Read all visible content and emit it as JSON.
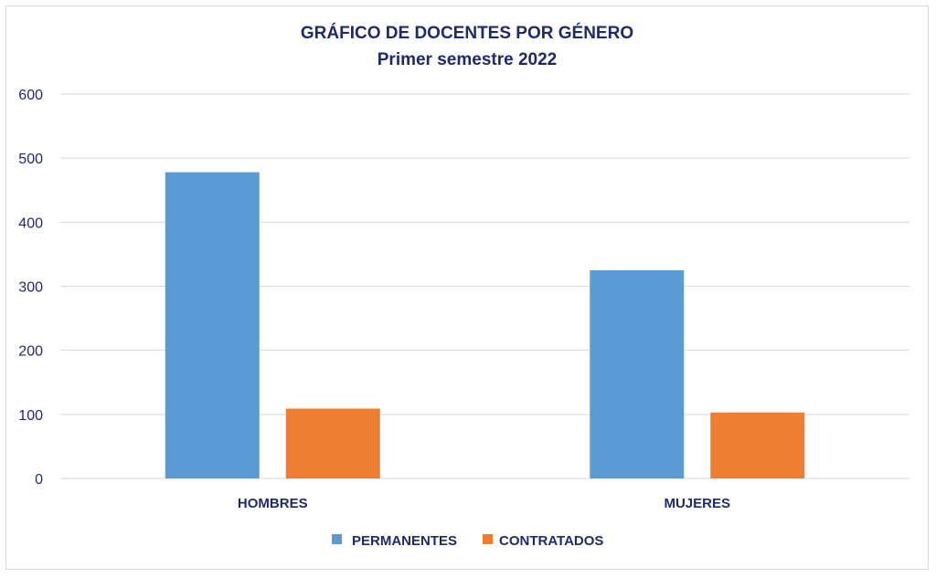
{
  "colors": {
    "title": "#1f2a6b",
    "axis_text": "#1f2a6b",
    "grid": "#d9d9d9",
    "permanentes": "#5b9bd5",
    "contratados": "#ed7d31"
  },
  "chart_data": {
    "type": "bar",
    "title": "GRÁFICO DE DOCENTES POR GÉNERO",
    "subtitle": "Primer semestre 2022",
    "categories": [
      "HOMBRES",
      "MUJERES"
    ],
    "series": [
      {
        "name": "PERMANENTES",
        "values": [
          478,
          325
        ]
      },
      {
        "name": "CONTRATADOS",
        "values": [
          109,
          103
        ]
      }
    ],
    "ylim": [
      0,
      600
    ],
    "yticks": [
      "0",
      "100",
      "200",
      "300",
      "400",
      "500",
      "600"
    ],
    "grid": true,
    "legend_position": "bottom"
  }
}
